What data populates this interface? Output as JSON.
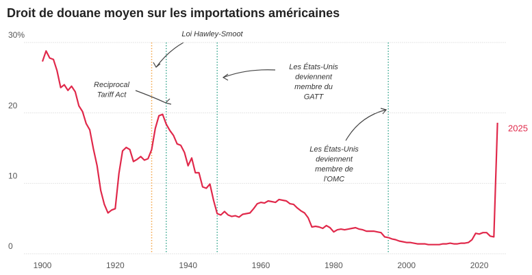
{
  "chart_data": {
    "type": "line",
    "title": "Droit de douane moyen sur les importations américaines",
    "x": [
      1900,
      1901,
      1902,
      1903,
      1904,
      1905,
      1906,
      1907,
      1908,
      1909,
      1910,
      1911,
      1912,
      1913,
      1914,
      1915,
      1916,
      1917,
      1918,
      1919,
      1920,
      1921,
      1922,
      1923,
      1924,
      1925,
      1926,
      1927,
      1928,
      1929,
      1930,
      1931,
      1932,
      1933,
      1934,
      1935,
      1936,
      1937,
      1938,
      1939,
      1940,
      1941,
      1942,
      1943,
      1944,
      1945,
      1946,
      1947,
      1948,
      1949,
      1950,
      1951,
      1952,
      1953,
      1954,
      1955,
      1956,
      1957,
      1958,
      1959,
      1960,
      1961,
      1962,
      1963,
      1964,
      1965,
      1966,
      1967,
      1968,
      1969,
      1970,
      1971,
      1972,
      1973,
      1974,
      1975,
      1976,
      1977,
      1978,
      1979,
      1980,
      1981,
      1982,
      1983,
      1984,
      1985,
      1986,
      1987,
      1988,
      1989,
      1990,
      1991,
      1992,
      1993,
      1994,
      1995,
      1996,
      1997,
      1998,
      1999,
      2000,
      2001,
      2002,
      2003,
      2004,
      2005,
      2006,
      2007,
      2008,
      2009,
      2010,
      2011,
      2012,
      2013,
      2014,
      2015,
      2016,
      2017,
      2018,
      2019,
      2020,
      2021,
      2022,
      2023,
      2024,
      2025
    ],
    "series": [
      {
        "color": "#e0284a",
        "values": [
          27.3,
          28.8,
          27.8,
          27.6,
          26,
          23.6,
          24,
          23.2,
          23.8,
          23,
          21,
          20.2,
          18.5,
          17.6,
          14.9,
          12.5,
          9,
          7,
          5.8,
          6.2,
          6.4,
          11.4,
          14.6,
          15.1,
          14.8,
          13.1,
          13.4,
          13.8,
          13.3,
          13.5,
          14.8,
          17.8,
          19.6,
          19.8,
          18.4,
          17.5,
          16.8,
          15.6,
          15.4,
          14.4,
          12.5,
          13.6,
          11.5,
          11.5,
          9.5,
          9.3,
          9.9,
          7.6,
          5.7,
          5.5,
          6.0,
          5.5,
          5.3,
          5.4,
          5.2,
          5.6,
          5.7,
          5.8,
          6.4,
          7.1,
          7.3,
          7.2,
          7.5,
          7.4,
          7.3,
          7.7,
          7.6,
          7.5,
          7.1,
          7.0,
          6.5,
          6.1,
          5.8,
          5.1,
          3.8,
          3.9,
          3.8,
          3.6,
          4.0,
          3.7,
          3.1,
          3.4,
          3.5,
          3.4,
          3.5,
          3.6,
          3.7,
          3.5,
          3.4,
          3.2,
          3.2,
          3.2,
          3.1,
          3.0,
          2.4,
          2.3,
          2.1,
          2.0,
          1.8,
          1.7,
          1.6,
          1.6,
          1.5,
          1.4,
          1.4,
          1.4,
          1.3,
          1.3,
          1.3,
          1.3,
          1.4,
          1.4,
          1.5,
          1.4,
          1.4,
          1.5,
          1.5,
          1.6,
          2.0,
          2.9,
          2.8,
          3.0,
          3.0,
          2.5,
          2.4,
          18.6
        ]
      }
    ],
    "end_label": "2025",
    "xlim": [
      1895,
      2031
    ],
    "xticks": [
      1900,
      1920,
      1940,
      1960,
      1980,
      2000,
      2020
    ],
    "ylim": [
      0,
      30
    ],
    "yticks": [
      0,
      10,
      20,
      {
        "value": 30,
        "label": "30%"
      }
    ],
    "grid": true,
    "events": [
      {
        "x": 1930,
        "color": "#f4a340"
      },
      {
        "x": 1934,
        "color": "#3aa890"
      },
      {
        "x": 1948,
        "color": "#3aa890"
      },
      {
        "x": 1995,
        "color": "#3aa890"
      }
    ],
    "annotations": [
      {
        "lines": [
          "Loi Hawley-Smoot"
        ]
      },
      {
        "lines": [
          "Reciprocal",
          "Tariff Act"
        ]
      },
      {
        "lines": [
          "Les États-Unis",
          "deviennent",
          "membre du",
          "GATT"
        ]
      },
      {
        "lines": [
          "Les États-Unis",
          "deviennent",
          "membre de",
          "l'OMC"
        ]
      }
    ]
  }
}
